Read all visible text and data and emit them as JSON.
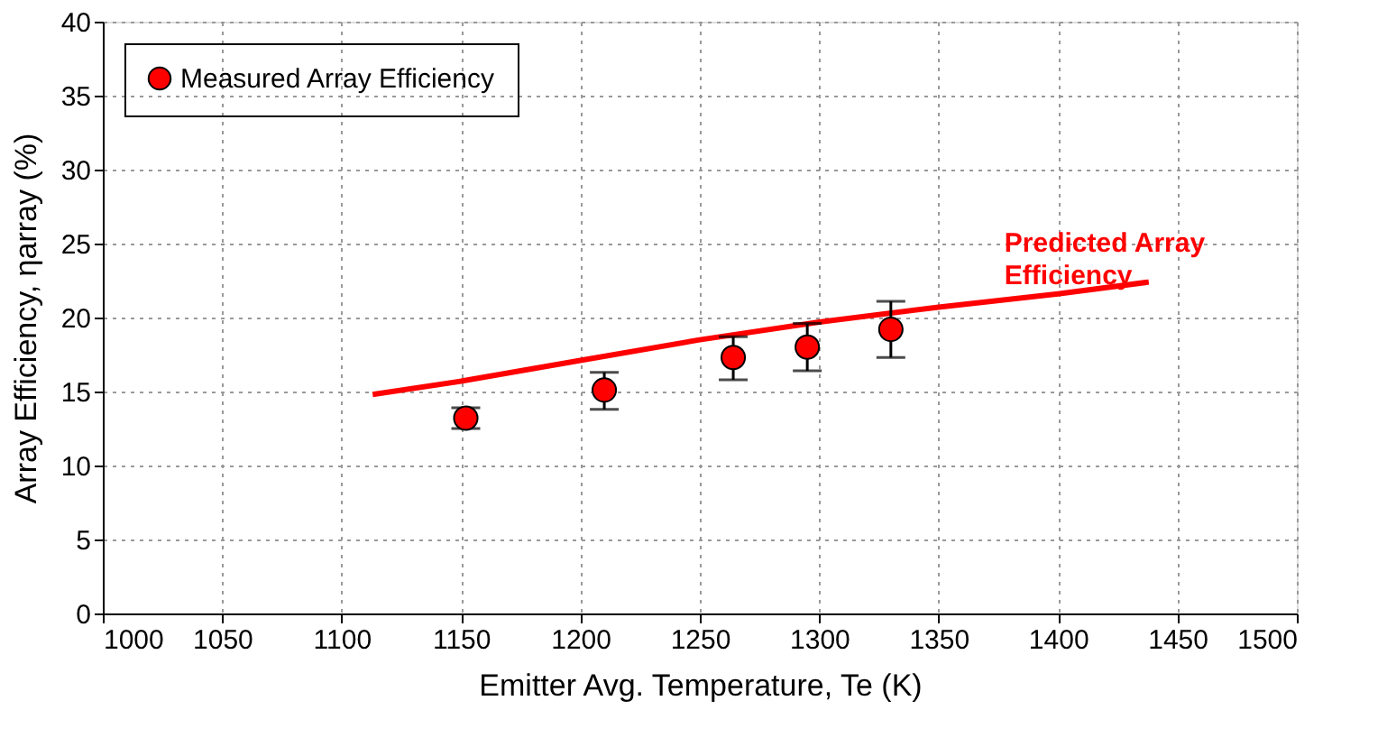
{
  "chart_data": {
    "type": "scatter",
    "xlabel": "Emitter Avg. Temperature, Te (K)",
    "ylabel": "Array Efficiency, ηarray (%)",
    "xlim": [
      1000,
      1500
    ],
    "xticks": [
      1000,
      1050,
      1100,
      1150,
      1200,
      1250,
      1300,
      1350,
      1400,
      1450,
      1500
    ],
    "ylim": [
      0,
      40
    ],
    "yticks": [
      0,
      5,
      10,
      15,
      20,
      25,
      30,
      35,
      40
    ],
    "grid": true,
    "legend": "top left",
    "series": [
      {
        "name": "Measured Array Efficiency",
        "marker": "circle",
        "color": "#ff0000",
        "x": [
          1152,
          1210,
          1264,
          1295,
          1330
        ],
        "values": [
          13.2,
          15.1,
          17.3,
          18.0,
          19.2
        ],
        "errors": [
          [
            12.5,
            13.9
          ],
          [
            13.8,
            16.3
          ],
          [
            15.8,
            18.7
          ],
          [
            16.4,
            19.6
          ],
          [
            17.3,
            21.1
          ]
        ]
      },
      {
        "name": "Predicted Array Efficiency",
        "type": "line",
        "color": "#ff0000",
        "line_style": "solid",
        "x": [
          1113,
          1150,
          1200,
          1250,
          1300,
          1350,
          1400,
          1438
        ],
        "values": [
          14.8,
          15.7,
          17.1,
          18.5,
          19.7,
          20.7,
          21.6,
          22.4
        ]
      }
    ]
  }
}
